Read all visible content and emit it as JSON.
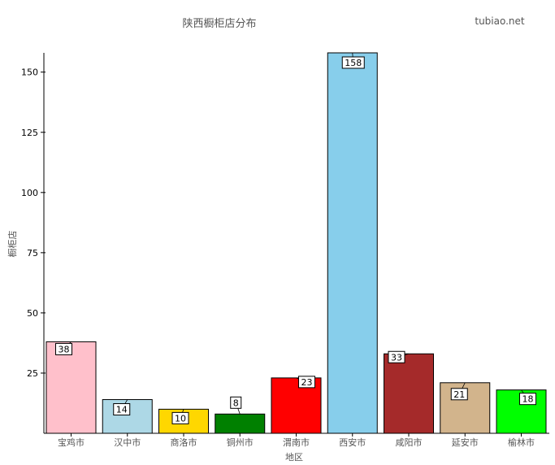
{
  "chart_data": {
    "type": "bar",
    "title": "陕西橱柜店分布",
    "xlabel": "地区",
    "ylabel": "橱柜店",
    "categories": [
      "宝鸡市",
      "汉中市",
      "商洛市",
      "铜州市",
      "渭南市",
      "西安市",
      "咸阳市",
      "延安市",
      "榆林市"
    ],
    "values": [
      38,
      14,
      10,
      8,
      23,
      158,
      33,
      21,
      18
    ],
    "colors": [
      "#FFC0CB",
      "#ADD8E6",
      "#FFD700",
      "#008000",
      "#FF0000",
      "#87CEEB",
      "#A52A2A",
      "#D2B48C",
      "#00FF00"
    ],
    "ylim": [
      0,
      158
    ],
    "yticks": [
      25,
      50,
      75,
      100,
      125,
      150
    ],
    "grid": false,
    "legend": "none"
  },
  "watermark": "tubiao.net"
}
